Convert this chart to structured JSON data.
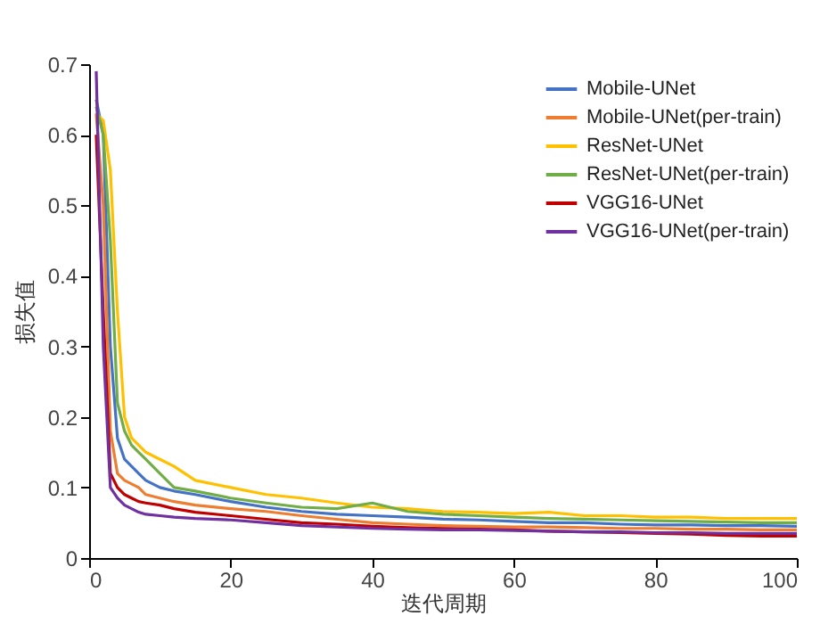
{
  "chart_data": {
    "type": "line",
    "xlabel": "迭代周期",
    "ylabel": "损失值",
    "xlim": [
      0,
      100
    ],
    "ylim": [
      0,
      0.7
    ],
    "xticks": [
      0,
      20,
      40,
      60,
      80,
      100
    ],
    "yticks": [
      0,
      0.1,
      0.2,
      0.3,
      0.4,
      0.5,
      0.6,
      0.7
    ],
    "grid": false,
    "legend": "top right",
    "marker": "none",
    "line_style": "solid",
    "x": [
      1,
      2,
      3,
      4,
      5,
      6,
      7,
      8,
      10,
      12,
      15,
      20,
      25,
      30,
      35,
      40,
      45,
      50,
      55,
      60,
      65,
      70,
      75,
      80,
      85,
      90,
      95,
      100
    ],
    "series": [
      {
        "name": "Mobile-UNet",
        "color": "#4472c4",
        "values": [
          0.65,
          0.6,
          0.3,
          0.17,
          0.14,
          0.13,
          0.12,
          0.11,
          0.1,
          0.095,
          0.09,
          0.08,
          0.072,
          0.066,
          0.062,
          0.06,
          0.058,
          0.055,
          0.054,
          0.052,
          0.05,
          0.05,
          0.048,
          0.047,
          0.047,
          0.046,
          0.046,
          0.045
        ]
      },
      {
        "name": "Mobile-UNet(per-train)",
        "color": "#ed7d31",
        "values": [
          0.63,
          0.5,
          0.18,
          0.12,
          0.11,
          0.105,
          0.1,
          0.09,
          0.085,
          0.08,
          0.075,
          0.07,
          0.066,
          0.06,
          0.055,
          0.05,
          0.048,
          0.046,
          0.045,
          0.044,
          0.044,
          0.043,
          0.042,
          0.042,
          0.041,
          0.041,
          0.04,
          0.04
        ]
      },
      {
        "name": "ResNet-UNet",
        "color": "#ffc000",
        "values": [
          0.63,
          0.62,
          0.55,
          0.35,
          0.2,
          0.17,
          0.16,
          0.15,
          0.14,
          0.13,
          0.11,
          0.1,
          0.09,
          0.085,
          0.078,
          0.072,
          0.07,
          0.066,
          0.065,
          0.063,
          0.065,
          0.06,
          0.06,
          0.058,
          0.058,
          0.056,
          0.056,
          0.056
        ]
      },
      {
        "name": "ResNet-UNet(per-train)",
        "color": "#70ad47",
        "values": [
          0.64,
          0.6,
          0.45,
          0.22,
          0.18,
          0.16,
          0.15,
          0.14,
          0.12,
          0.1,
          0.095,
          0.085,
          0.078,
          0.072,
          0.07,
          0.078,
          0.066,
          0.062,
          0.06,
          0.058,
          0.056,
          0.055,
          0.054,
          0.053,
          0.052,
          0.051,
          0.05,
          0.05
        ]
      },
      {
        "name": "VGG16-UNet",
        "color": "#c00000",
        "values": [
          0.6,
          0.35,
          0.12,
          0.1,
          0.09,
          0.085,
          0.08,
          0.078,
          0.075,
          0.07,
          0.065,
          0.06,
          0.055,
          0.05,
          0.048,
          0.045,
          0.043,
          0.042,
          0.041,
          0.04,
          0.038,
          0.037,
          0.036,
          0.035,
          0.034,
          0.032,
          0.031,
          0.031
        ]
      },
      {
        "name": "VGG16-UNet(per-train)",
        "color": "#7030a0",
        "values": [
          0.69,
          0.3,
          0.1,
          0.085,
          0.075,
          0.07,
          0.065,
          0.062,
          0.06,
          0.058,
          0.056,
          0.054,
          0.05,
          0.046,
          0.044,
          0.042,
          0.041,
          0.04,
          0.04,
          0.039,
          0.038,
          0.037,
          0.037,
          0.036,
          0.036,
          0.035,
          0.035,
          0.035
        ]
      }
    ]
  }
}
